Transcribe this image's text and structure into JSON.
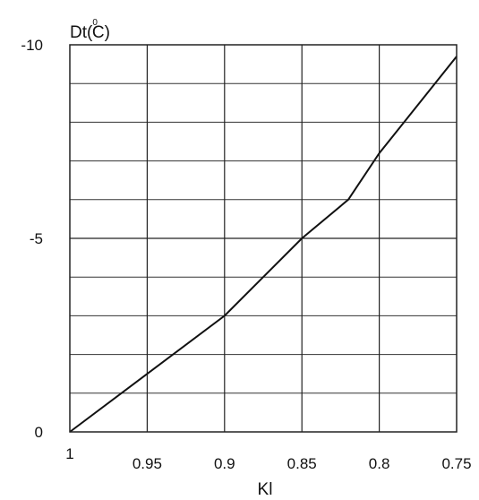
{
  "chart_data": {
    "type": "line",
    "title": "",
    "ylabel": {
      "prefix": "Dt(",
      "superscript": "0",
      "suffix": "C)"
    },
    "xlabel": "Kl",
    "x_axis_reversed": true,
    "xlim": [
      1,
      0.75
    ],
    "ylim": [
      0,
      -10
    ],
    "y_axis_inverted": true,
    "grid": true,
    "x_ticks": [
      {
        "value": 1,
        "label": "1"
      },
      {
        "value": 0.95,
        "label": "0.95"
      },
      {
        "value": 0.9,
        "label": "0.9"
      },
      {
        "value": 0.85,
        "label": "0.85"
      },
      {
        "value": 0.8,
        "label": "0.8"
      },
      {
        "value": 0.75,
        "label": "0.75"
      }
    ],
    "y_ticks": [
      {
        "value": 0,
        "label": "0"
      },
      {
        "value": -5,
        "label": "-5"
      },
      {
        "value": -10,
        "label": "-10"
      }
    ],
    "series": [
      {
        "x": [
          1,
          0.95,
          0.9,
          0.875,
          0.85,
          0.82,
          0.8,
          0.75
        ],
        "y": [
          0,
          -1.5,
          -3.0,
          -4.0,
          -5.0,
          -6.0,
          -7.2,
          -9.7
        ]
      }
    ]
  }
}
